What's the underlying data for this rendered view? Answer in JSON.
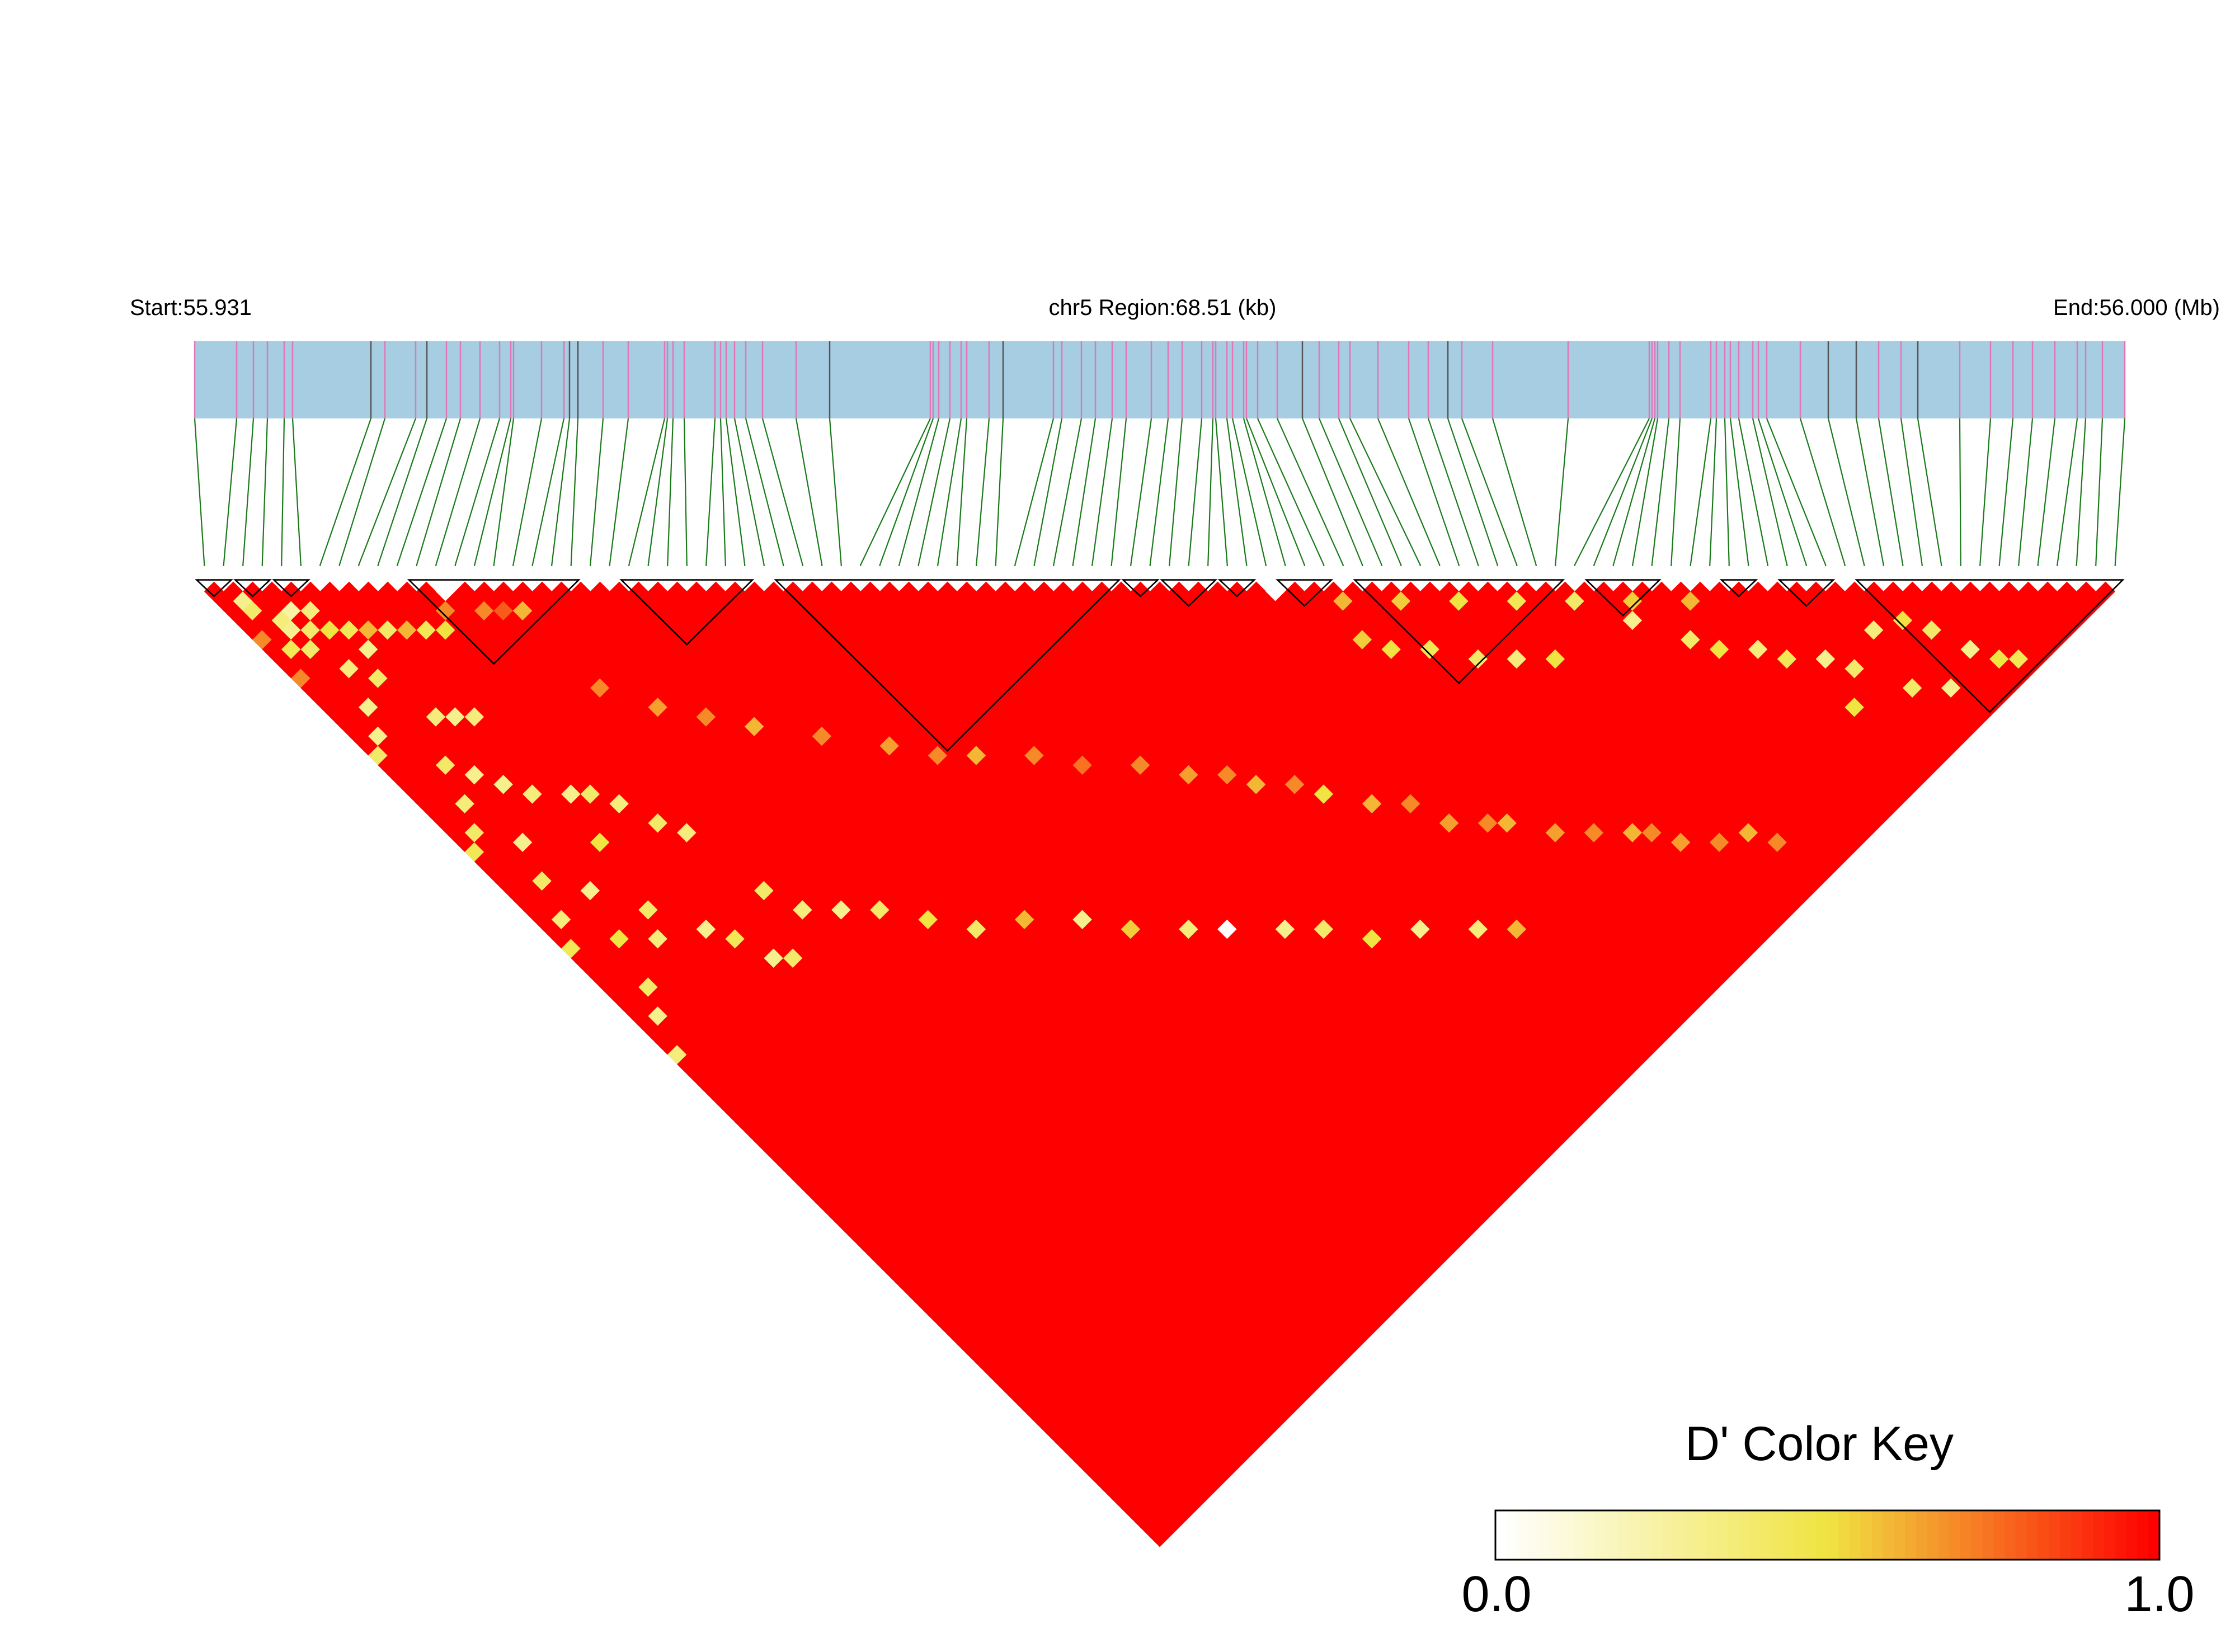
{
  "chart_data": {
    "type": "heatmap",
    "subtype": "ld-triangle",
    "start_label": "Start:55.931",
    "end_label": "End:56.000 (Mb)",
    "region_label": "chr5 Region:68.51 (kb)",
    "chromosome": "chr5",
    "region_start_mb": 55.931,
    "region_end_mb": 56.0,
    "region_size_kb": 68.51,
    "snp_count": 100,
    "snp_positions_mb": [
      55.931,
      55.9325,
      55.9331,
      55.9336,
      55.9342,
      55.9345,
      55.9373,
      55.9378,
      55.9389,
      55.9393,
      55.94,
      55.9405,
      55.9412,
      55.9419,
      55.9423,
      55.9424,
      55.9434,
      55.9442,
      55.9444,
      55.9447,
      55.9456,
      55.9465,
      55.9478,
      55.9479,
      55.9481,
      55.9485,
      55.9496,
      55.9498,
      55.95,
      55.9503,
      55.9507,
      55.9513,
      55.9525,
      55.9537,
      55.9573,
      55.9574,
      55.9576,
      55.958,
      55.9584,
      55.9586,
      55.9594,
      55.9599,
      55.9617,
      55.962,
      55.9627,
      55.9632,
      55.9638,
      55.9643,
      55.9652,
      55.9658,
      55.9663,
      55.967,
      55.9674,
      55.9675,
      55.9679,
      55.9681,
      55.9685,
      55.9686,
      55.969,
      55.9697,
      55.9706,
      55.9712,
      55.9719,
      55.9723,
      55.9733,
      55.9744,
      55.9751,
      55.9758,
      55.9763,
      55.9774,
      55.9801,
      55.983,
      55.9831,
      55.9832,
      55.9833,
      55.9837,
      55.9841,
      55.9852,
      55.9854,
      55.9857,
      55.9859,
      55.9862,
      55.9867,
      55.9869,
      55.9872,
      55.9884,
      55.9894,
      55.9904,
      55.9912,
      55.992,
      55.9926,
      55.9941,
      55.9952,
      55.996,
      55.9967,
      55.9975,
      55.9983,
      55.9986,
      55.9992,
      56.0
    ],
    "blocks": [
      {
        "start": 0,
        "end": 1
      },
      {
        "start": 2,
        "end": 3
      },
      {
        "start": 4,
        "end": 5
      },
      {
        "start": 11,
        "end": 19
      },
      {
        "start": 22,
        "end": 28
      },
      {
        "start": 30,
        "end": 47
      },
      {
        "start": 48,
        "end": 49
      },
      {
        "start": 50,
        "end": 52
      },
      {
        "start": 53,
        "end": 54
      },
      {
        "start": 56,
        "end": 58
      },
      {
        "start": 60,
        "end": 70
      },
      {
        "start": 72,
        "end": 75
      },
      {
        "start": 79,
        "end": 80
      },
      {
        "start": 82,
        "end": 84
      },
      {
        "start": 86,
        "end": 99
      }
    ],
    "d_prime": {
      "default": 1.0,
      "cells": [
        [
          0,
          6,
          0.7
        ],
        [
          1,
          3,
          0.3
        ],
        [
          1,
          4,
          0.4
        ],
        [
          2,
          6,
          0.35
        ],
        [
          2,
          7,
          0.3
        ],
        [
          3,
          6,
          0.25
        ],
        [
          3,
          8,
          0.4
        ],
        [
          4,
          7,
          0.35
        ],
        [
          4,
          9,
          0.5
        ],
        [
          5,
          10,
          0.45
        ],
        [
          6,
          11,
          0.6
        ],
        [
          5,
          12,
          0.3
        ],
        [
          7,
          12,
          0.4
        ],
        [
          8,
          13,
          0.6
        ],
        [
          9,
          14,
          0.45
        ],
        [
          10,
          15,
          0.5
        ],
        [
          11,
          14,
          0.7
        ],
        [
          12,
          13,
          0.0
        ],
        [
          13,
          16,
          0.7
        ],
        [
          14,
          17,
          0.8
        ],
        [
          15,
          18,
          0.6
        ],
        [
          1,
          8,
          0.45
        ],
        [
          2,
          9,
          0.4
        ],
        [
          0,
          10,
          0.7
        ],
        [
          3,
          12,
          0.35
        ],
        [
          4,
          14,
          0.4
        ],
        [
          2,
          15,
          0.3
        ],
        [
          1,
          17,
          0.3
        ],
        [
          0,
          18,
          0.4
        ],
        [
          5,
          19,
          0.35
        ],
        [
          6,
          20,
          0.3
        ],
        [
          7,
          21,
          0.35
        ],
        [
          3,
          22,
          0.4
        ],
        [
          4,
          24,
          0.3
        ],
        [
          2,
          25,
          0.35
        ],
        [
          1,
          27,
          0.4
        ],
        [
          0,
          28,
          0.45
        ],
        [
          5,
          26,
          0.3
        ],
        [
          6,
          28,
          0.35
        ],
        [
          8,
          30,
          0.3
        ],
        [
          9,
          31,
          0.4
        ],
        [
          10,
          33,
          0.35
        ],
        [
          7,
          34,
          0.5
        ],
        [
          11,
          36,
          0.4
        ],
        [
          12,
          38,
          0.35
        ],
        [
          3,
          30,
          0.3
        ],
        [
          2,
          33,
          0.4
        ],
        [
          1,
          36,
          0.35
        ],
        [
          0,
          38,
          0.45
        ],
        [
          4,
          36,
          0.3
        ],
        [
          6,
          40,
          0.4
        ],
        [
          5,
          42,
          0.35
        ],
        [
          8,
          44,
          0.3
        ],
        [
          13,
          45,
          0.4
        ],
        [
          14,
          48,
          0.35
        ],
        [
          9,
          46,
          0.45
        ],
        [
          10,
          49,
          0.3
        ],
        [
          11,
          50,
          0.4
        ],
        [
          3,
          40,
          0.5
        ],
        [
          2,
          44,
          0.4
        ],
        [
          1,
          46,
          0.3
        ],
        [
          0,
          49,
          0.35
        ],
        [
          16,
          50,
          0.3
        ],
        [
          18,
          52,
          0.4
        ],
        [
          20,
          55,
          0.5
        ],
        [
          22,
          58,
          0.4
        ],
        [
          25,
          60,
          0.6
        ],
        [
          28,
          63,
          0.3
        ],
        [
          30,
          66,
          0.55
        ],
        [
          33,
          69,
          0.35
        ],
        [
          35,
          71,
          0.0
        ],
        [
          38,
          74,
          0.3
        ],
        [
          40,
          76,
          0.4
        ],
        [
          42,
          79,
          0.5
        ],
        [
          45,
          81,
          0.3
        ],
        [
          48,
          84,
          0.35
        ],
        [
          50,
          86,
          0.6
        ],
        [
          15,
          26,
          0.7
        ],
        [
          17,
          30,
          0.65
        ],
        [
          19,
          33,
          0.7
        ],
        [
          21,
          36,
          0.6
        ],
        [
          24,
          40,
          0.7
        ],
        [
          27,
          44,
          0.65
        ],
        [
          29,
          47,
          0.7
        ],
        [
          31,
          49,
          0.6
        ],
        [
          34,
          52,
          0.7
        ],
        [
          36,
          55,
          0.75
        ],
        [
          39,
          58,
          0.7
        ],
        [
          41,
          61,
          0.65
        ],
        [
          43,
          63,
          0.7
        ],
        [
          44,
          65,
          0.6
        ],
        [
          46,
          67,
          0.7
        ],
        [
          47,
          69,
          0.5
        ],
        [
          49,
          72,
          0.6
        ],
        [
          51,
          74,
          0.7
        ],
        [
          52,
          77,
          0.65
        ],
        [
          54,
          79,
          0.7
        ],
        [
          55,
          80,
          0.6
        ],
        [
          57,
          83,
          0.65
        ],
        [
          59,
          85,
          0.7
        ],
        [
          61,
          87,
          0.6
        ],
        [
          62,
          88,
          0.7
        ],
        [
          63,
          90,
          0.65
        ],
        [
          65,
          92,
          0.7
        ],
        [
          67,
          93,
          0.6
        ],
        [
          68,
          95,
          0.7
        ],
        [
          55,
          56,
          0.0
        ],
        [
          57,
          63,
          0.55
        ],
        [
          58,
          65,
          0.5
        ],
        [
          60,
          67,
          0.45
        ],
        [
          62,
          70,
          0.4
        ],
        [
          64,
          72,
          0.35
        ],
        [
          66,
          74,
          0.5
        ],
        [
          58,
          60,
          0.6
        ],
        [
          61,
          63,
          0.55
        ],
        [
          64,
          66,
          0.5
        ],
        [
          67,
          69,
          0.45
        ],
        [
          70,
          72,
          0.4
        ],
        [
          73,
          75,
          0.55
        ],
        [
          76,
          78,
          0.6
        ],
        [
          72,
          76,
          0.3
        ],
        [
          74,
          80,
          0.4
        ],
        [
          75,
          82,
          0.5
        ],
        [
          77,
          84,
          0.35
        ],
        [
          78,
          86,
          0.45
        ],
        [
          80,
          88,
          0.3
        ],
        [
          81,
          90,
          0.4
        ],
        [
          79,
          92,
          0.5
        ],
        [
          83,
          94,
          0.4
        ],
        [
          85,
          96,
          0.3
        ],
        [
          84,
          89,
          0.35
        ],
        [
          86,
          90,
          0.5
        ],
        [
          87,
          92,
          0.4
        ],
        [
          88,
          95,
          0.3
        ],
        [
          89,
          97,
          0.5
        ],
        [
          90,
          98,
          0.45
        ]
      ]
    },
    "color_key": {
      "title": "D' Color Key",
      "min_label": "0.0",
      "max_label": "1.0",
      "min": 0.0,
      "max": 1.0,
      "stops": [
        "#ffffff",
        "#f0e442",
        "#ff0000"
      ]
    },
    "colors": {
      "track_fill": "#a6cde2",
      "snp_tick_default": "#e276b6",
      "snp_tick_dark": "#555555",
      "connector_line": "#1a7a1a",
      "high_ld": "#ff0000",
      "block_outline": "#000000"
    }
  }
}
